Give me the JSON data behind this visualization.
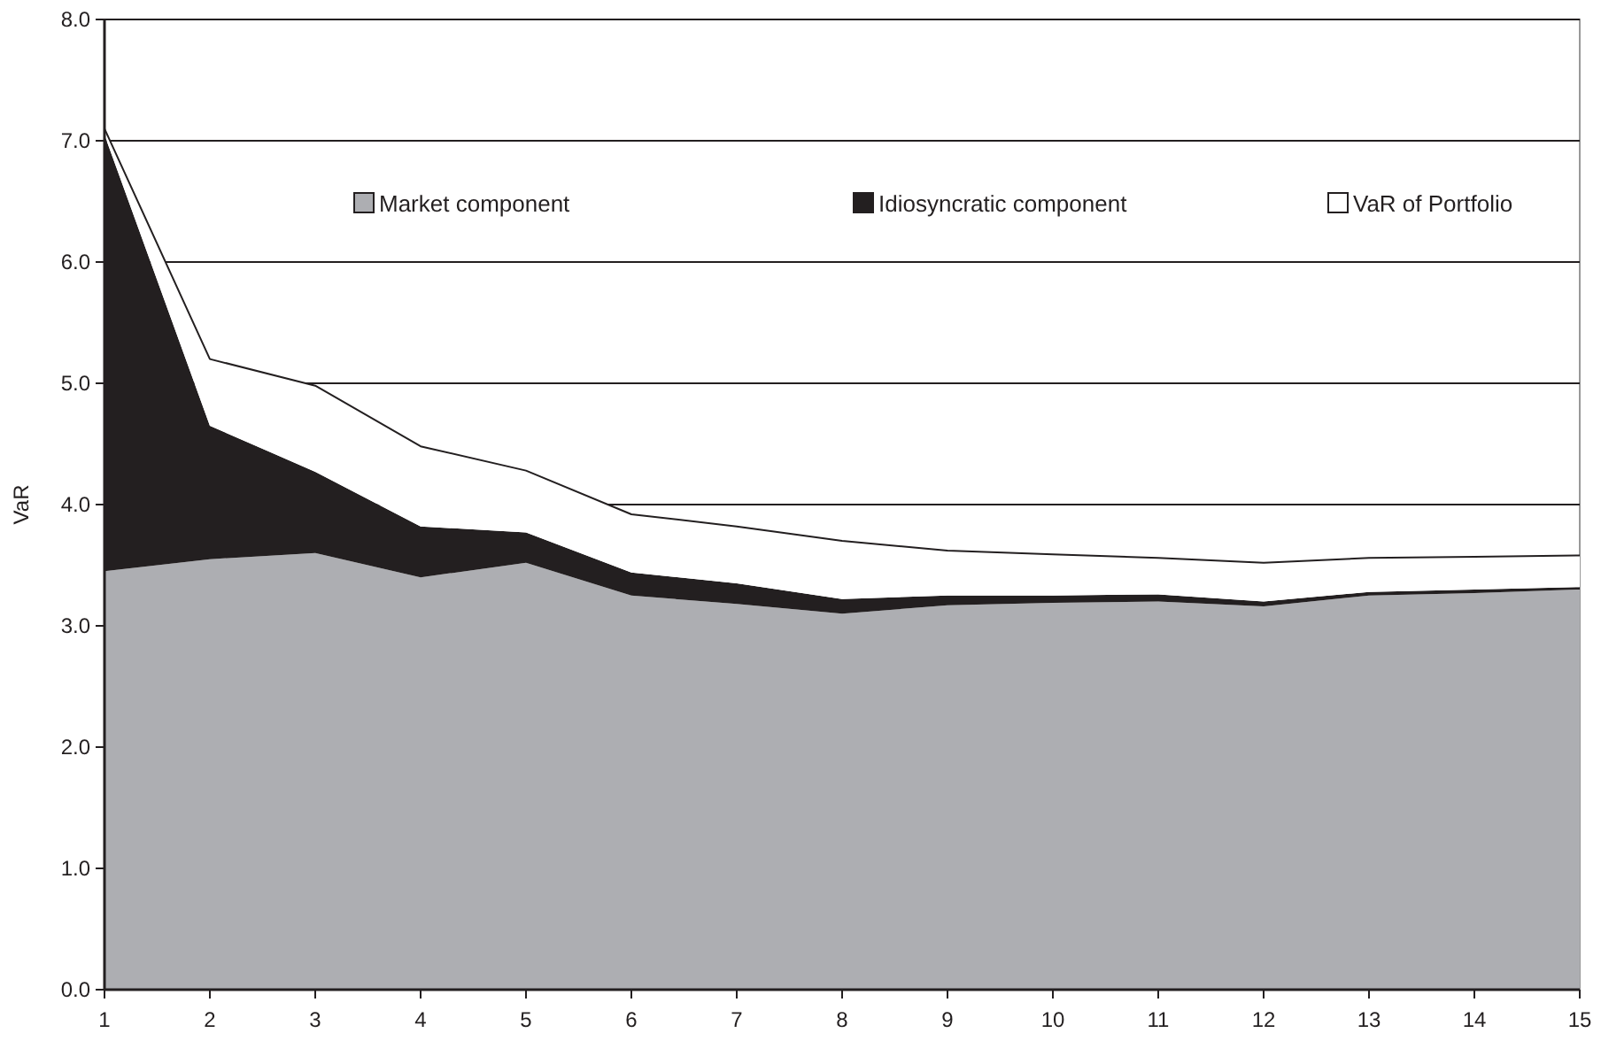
{
  "chart_data": {
    "type": "area",
    "stacked": true,
    "ylabel": "VaR",
    "x": [
      1,
      2,
      3,
      4,
      5,
      6,
      7,
      8,
      9,
      10,
      11,
      12,
      13,
      14,
      15
    ],
    "xlim": [
      1,
      15
    ],
    "xticks": [
      1,
      2,
      3,
      4,
      5,
      6,
      7,
      8,
      9,
      10,
      11,
      12,
      13,
      14,
      15
    ],
    "ylim": [
      0,
      8
    ],
    "yticks": [
      {
        "value": 0,
        "label": "0.0"
      },
      {
        "value": 1,
        "label": "1.0"
      },
      {
        "value": 2,
        "label": "2.0"
      },
      {
        "value": 3,
        "label": "3.0"
      },
      {
        "value": 4,
        "label": "4.0"
      },
      {
        "value": 5,
        "label": "5.0"
      },
      {
        "value": 6,
        "label": "6.0"
      },
      {
        "value": 7,
        "label": "7.0"
      },
      {
        "value": 8,
        "label": "8.0"
      }
    ],
    "grid": "y",
    "legend": "top",
    "series": [
      {
        "name": "Market component",
        "color": "#adaeb2",
        "values": [
          3.45,
          3.55,
          3.6,
          3.4,
          3.52,
          3.25,
          3.18,
          3.1,
          3.17,
          3.19,
          3.2,
          3.16,
          3.25,
          3.27,
          3.3
        ]
      },
      {
        "name": "Idiosyncratic component",
        "color": "#231f20",
        "values": [
          3.6,
          1.1,
          0.67,
          0.42,
          0.25,
          0.19,
          0.17,
          0.12,
          0.08,
          0.06,
          0.06,
          0.04,
          0.03,
          0.03,
          0.02
        ]
      },
      {
        "name": "VaR of Portfolio",
        "color": "#ffffff",
        "values": [
          0.05,
          0.55,
          0.71,
          0.66,
          0.51,
          0.48,
          0.47,
          0.48,
          0.37,
          0.34,
          0.3,
          0.32,
          0.28,
          0.27,
          0.26
        ]
      }
    ]
  }
}
